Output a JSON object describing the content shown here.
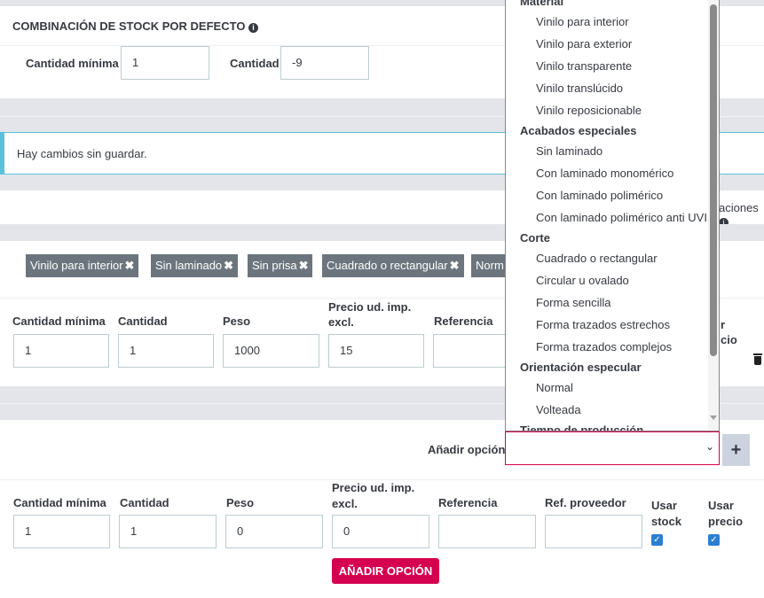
{
  "default_stock": {
    "title": "COMBINACIÓN DE STOCK POR DEFECTO",
    "min_qty_label": "Cantidad mínima",
    "min_qty_value": "1",
    "qty_label": "Cantidad",
    "qty_value": "-9"
  },
  "alert": {
    "text": "Hay cambios sin guardar."
  },
  "combinations_label_partial": "aciones",
  "chips": [
    "Vinilo para interior",
    "Sin laminado",
    "Sin prisa",
    "Cuadrado o rectangular",
    "Norm"
  ],
  "row1": {
    "headers": {
      "min_qty": "Cantidad mínima",
      "qty": "Cantidad",
      "weight": "Peso",
      "price": "Precio ud. imp. excl.",
      "reference": "Referencia",
      "use_price_partial": "r cio"
    },
    "values": {
      "min_qty": "1",
      "qty": "1",
      "weight": "1000",
      "price": "15",
      "reference": ""
    }
  },
  "add_option": {
    "label": "Añadir opción",
    "select_value": "",
    "plus": "+"
  },
  "dropdown": {
    "groups": [
      {
        "label": "Material",
        "options": [
          "Vinilo para interior",
          "Vinilo para exterior",
          "Vinilo transparente",
          "Vinilo translúcido",
          "Vinilo reposicionable"
        ]
      },
      {
        "label": "Acabados especiales",
        "options": [
          "Sin laminado",
          "Con laminado monomérico",
          "Con laminado polimérico",
          "Con laminado polimérico anti UVI"
        ]
      },
      {
        "label": "Corte",
        "options": [
          "Cuadrado o rectangular",
          "Circular u ovalado",
          "Forma sencilla",
          "Forma trazados estrechos",
          "Forma trazados complejos"
        ]
      },
      {
        "label": "Orientación especular",
        "options": [
          "Normal",
          "Volteada"
        ]
      },
      {
        "label": "Tiempo de producción",
        "options": []
      }
    ]
  },
  "new_row": {
    "headers": {
      "min_qty": "Cantidad mínima",
      "qty": "Cantidad",
      "weight": "Peso",
      "price": "Precio ud. imp. excl.",
      "reference": "Referencia",
      "supplier_ref": "Ref. proveedor",
      "use_stock": "Usar stock",
      "use_price": "Usar precio"
    },
    "values": {
      "min_qty": "1",
      "qty": "1",
      "weight": "0",
      "price": "0",
      "reference": "",
      "supplier_ref": ""
    },
    "use_stock": true,
    "use_price": true,
    "submit": "AÑADIR OPCIÓN"
  },
  "colors": {
    "accent": "#d5004f",
    "info": "#5bc0de",
    "chip": "#6c757d",
    "band": "#e3e5ea"
  }
}
